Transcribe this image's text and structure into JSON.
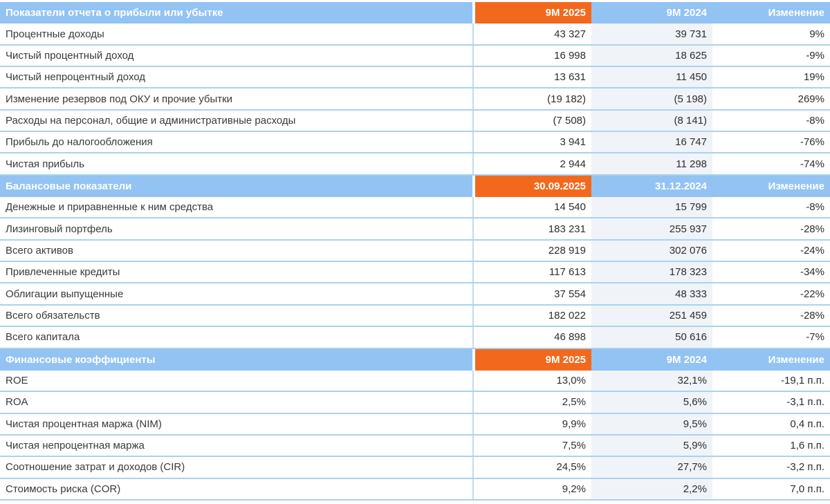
{
  "colors": {
    "accent_orange": "#F2691E",
    "header_blue": "#92C3F3",
    "prior_period_column_shade": "#F0F3F8",
    "grid_line_blue": "#A9D2EF"
  },
  "sections": [
    {
      "title": "Показатели отчета о прибыли или убытке",
      "columns": [
        "9M 2025",
        "9M 2024",
        "Изменение"
      ],
      "rows": [
        {
          "label": "Процентные доходы",
          "v1": "43 327",
          "v2": "39 731",
          "chg": "9%"
        },
        {
          "label": "Чистый процентный доход",
          "v1": "16 998",
          "v2": "18 625",
          "chg": "-9%"
        },
        {
          "label": "Чистый непроцентный доход",
          "v1": "13 631",
          "v2": "11 450",
          "chg": "19%"
        },
        {
          "label": "Изменение резервов под ОКУ и прочие убытки",
          "v1": "(19 182)",
          "v2": "(5 198)",
          "chg": "269%"
        },
        {
          "label": "Расходы на персонал, общие и административные расходы",
          "v1": "(7 508)",
          "v2": "(8 141)",
          "chg": "-8%"
        },
        {
          "label": "Прибыль до налогообложения",
          "v1": "3 941",
          "v2": "16 747",
          "chg": "-76%"
        },
        {
          "label": "Чистая прибыль",
          "v1": "2 944",
          "v2": "11 298",
          "chg": "-74%"
        }
      ]
    },
    {
      "title": "Балансовые показатели",
      "columns": [
        "30.09.2025",
        "31.12.2024",
        "Изменение"
      ],
      "rows": [
        {
          "label": "Денежные и приравненные к ним средства",
          "v1": "14 540",
          "v2": "15 799",
          "chg": "-8%"
        },
        {
          "label": "Лизинговый портфель",
          "v1": "183 231",
          "v2": "255 937",
          "chg": "-28%"
        },
        {
          "label": "Всего активов",
          "v1": "228 919",
          "v2": "302 076",
          "chg": "-24%"
        },
        {
          "label": "Привлеченные кредиты",
          "v1": "117 613",
          "v2": "178 323",
          "chg": "-34%"
        },
        {
          "label": "Облигации выпущенные",
          "v1": "37 554",
          "v2": "48 333",
          "chg": "-22%"
        },
        {
          "label": "Всего обязательств",
          "v1": "182 022",
          "v2": "251 459",
          "chg": "-28%"
        },
        {
          "label": "Всего капитала",
          "v1": "46 898",
          "v2": "50 616",
          "chg": "-7%"
        }
      ]
    },
    {
      "title": "Финансовые коэффициенты",
      "columns": [
        "9M 2025",
        "9M 2024",
        "Изменение"
      ],
      "rows": [
        {
          "label": "ROE",
          "v1": "13,0%",
          "v2": "32,1%",
          "chg": "-19,1 п.п."
        },
        {
          "label": "ROA",
          "v1": "2,5%",
          "v2": "5,6%",
          "chg": "-3,1 п.п."
        },
        {
          "label": "Чистая процентная маржа (NIM)",
          "v1": "9,9%",
          "v2": "9,5%",
          "chg": "0,4 п.п."
        },
        {
          "label": "Чистая непроцентная маржа",
          "v1": "7,5%",
          "v2": "5,9%",
          "chg": "1,6 п.п."
        },
        {
          "label": "Соотношение затрат и доходов (CIR)",
          "v1": "24,5%",
          "v2": "27,7%",
          "chg": "-3,2 п.п."
        },
        {
          "label": "Стоимость риска (COR)",
          "v1": "9,2%",
          "v2": "2,2%",
          "chg": "7,0 п.п."
        }
      ]
    }
  ]
}
